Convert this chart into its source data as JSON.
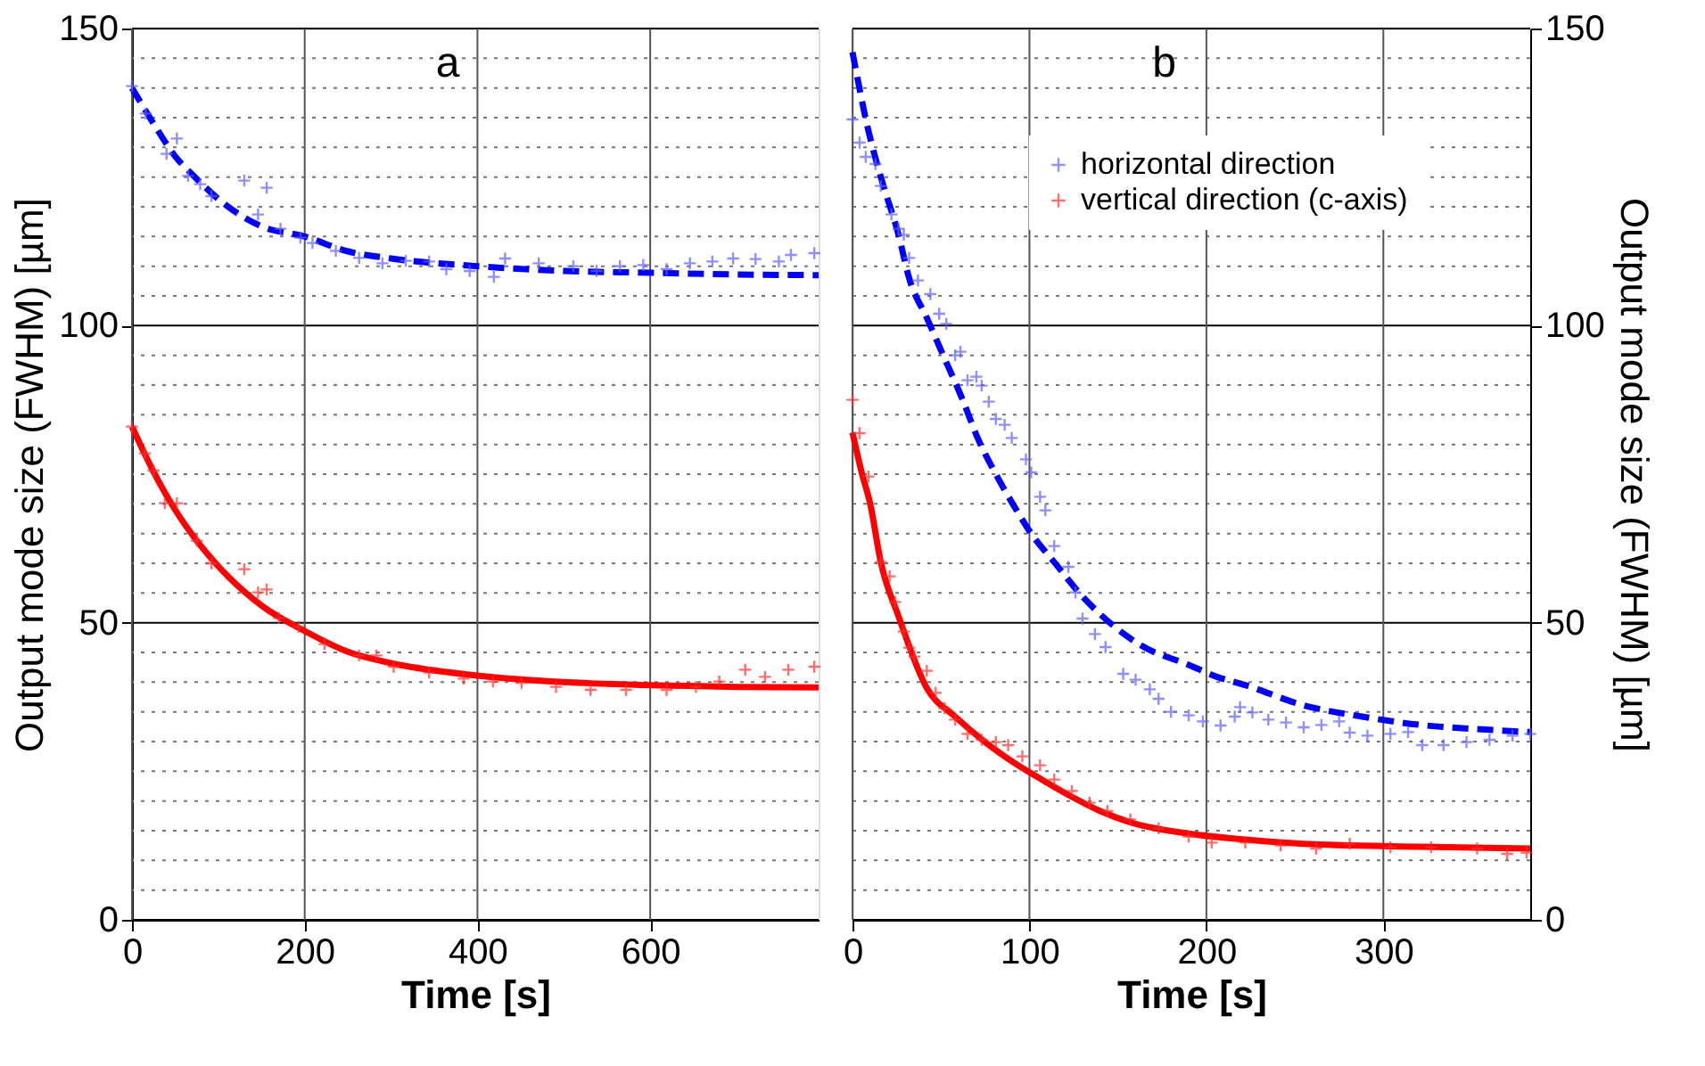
{
  "chart_data": [
    {
      "type": "scatter",
      "title": "a",
      "xlabel": "Time [s]",
      "ylabel": "Output mode size (FWHM) [µm]",
      "xlim": [
        0,
        795
      ],
      "xticks": [
        0,
        200,
        400,
        600
      ],
      "ylim": [
        0,
        150
      ],
      "yticks": [
        0,
        {
          "value": 5,
          "label": null
        },
        {
          "value": 10,
          "label": null
        },
        {
          "value": 15,
          "label": null
        },
        {
          "value": 20,
          "label": null
        },
        {
          "value": 25,
          "label": null
        },
        {
          "value": 30,
          "label": null
        },
        {
          "value": 35,
          "label": null
        },
        {
          "value": 40,
          "label": null
        },
        {
          "value": 45,
          "label": null
        },
        50,
        {
          "value": 55,
          "label": null
        },
        {
          "value": 60,
          "label": null
        },
        {
          "value": 65,
          "label": null
        },
        {
          "value": 70,
          "label": null
        },
        {
          "value": 75,
          "label": null
        },
        {
          "value": 80,
          "label": null
        },
        {
          "value": 85,
          "label": null
        },
        {
          "value": 90,
          "label": null
        },
        {
          "value": 95,
          "label": null
        },
        100,
        {
          "value": 105,
          "label": null
        },
        {
          "value": 110,
          "label": null
        },
        {
          "value": 115,
          "label": null
        },
        {
          "value": 120,
          "label": null
        },
        {
          "value": 125,
          "label": null
        },
        {
          "value": 130,
          "label": null
        },
        {
          "value": 135,
          "label": null
        },
        {
          "value": 140,
          "label": null
        },
        {
          "value": 145,
          "label": null
        },
        150
      ],
      "grid": true,
      "series": [
        {
          "type": "scatter",
          "marker": "cross",
          "color": "#6060ff",
          "x": [
            0,
            16,
            40,
            52,
            65,
            79,
            92,
            130,
            156,
            146,
            172,
            195,
            209,
            236,
            263,
            290,
            317,
            344,
            364,
            391,
            419,
            432,
            471,
            511,
            538,
            565,
            592,
            619,
            646,
            672,
            696,
            722,
            749,
            763,
            790
          ],
          "values": [
            140.3,
            135.7,
            128.9,
            131.5,
            125.2,
            123.8,
            121.8,
            124.4,
            123.2,
            118.7,
            116.3,
            114.8,
            113.9,
            112.6,
            111.4,
            110.5,
            110.9,
            110.8,
            109.5,
            109.2,
            108.2,
            111.3,
            110.5,
            110.0,
            109.2,
            110.0,
            110.2,
            109.5,
            110.5,
            110.8,
            111.3,
            111.2,
            110.8,
            111.9,
            112.2
          ]
        },
        {
          "type": "line",
          "line_style": "dashed",
          "color": "#0000ff",
          "x": [
            0,
            25,
            50,
            75,
            100,
            150,
            200,
            250,
            300,
            400,
            500,
            600,
            700,
            795
          ],
          "values": [
            140,
            134,
            128.5,
            124.7,
            121.3,
            116.7,
            115,
            112.5,
            111.3,
            110,
            109.2,
            108.9,
            108.6,
            108.5
          ]
        },
        {
          "type": "scatter",
          "marker": "cross",
          "color": "#ff3030",
          "x": [
            0,
            15,
            25,
            38,
            52,
            75,
            92,
            130,
            156,
            146,
            170,
            193,
            223,
            263,
            283,
            303,
            344,
            384,
            418,
            451,
            491,
            531,
            572,
            619,
            653,
            680,
            710,
            733,
            760,
            790
          ],
          "values": [
            83,
            78.5,
            75.6,
            70.1,
            70.1,
            63.8,
            60,
            59,
            55.6,
            55.1,
            50.8,
            49.3,
            46.4,
            44.5,
            44.5,
            42.6,
            41.6,
            40.6,
            40.1,
            39.9,
            39.2,
            38.7,
            38.7,
            38.7,
            39.2,
            40.1,
            42.1,
            40.9,
            42.1,
            42.6
          ]
        },
        {
          "type": "line",
          "line_style": "solid",
          "color": "#ff0000",
          "x": [
            0,
            25,
            50,
            75,
            100,
            150,
            200,
            250,
            300,
            400,
            500,
            600,
            700,
            795
          ],
          "values": [
            83,
            75.4,
            69,
            63.8,
            59.5,
            52.9,
            48.6,
            45.1,
            43.2,
            41.1,
            40,
            39.5,
            39.2,
            39.1
          ]
        }
      ]
    },
    {
      "type": "scatter",
      "title": "b",
      "xlabel": "Time [s]",
      "y2label": "Output mode size (FWHM) [µm]",
      "xlim": [
        0,
        383
      ],
      "xticks": [
        0,
        100,
        200,
        300
      ],
      "y2lim": [
        0,
        150
      ],
      "y2ticks": [
        0,
        {
          "value": 5,
          "label": null
        },
        {
          "value": 10,
          "label": null
        },
        {
          "value": 15,
          "label": null
        },
        {
          "value": 20,
          "label": null
        },
        {
          "value": 25,
          "label": null
        },
        {
          "value": 30,
          "label": null
        },
        {
          "value": 35,
          "label": null
        },
        {
          "value": 40,
          "label": null
        },
        {
          "value": 45,
          "label": null
        },
        50,
        {
          "value": 55,
          "label": null
        },
        {
          "value": 60,
          "label": null
        },
        {
          "value": 65,
          "label": null
        },
        {
          "value": 70,
          "label": null
        },
        {
          "value": 75,
          "label": null
        },
        {
          "value": 80,
          "label": null
        },
        {
          "value": 85,
          "label": null
        },
        {
          "value": 90,
          "label": null
        },
        {
          "value": 95,
          "label": null
        },
        100,
        {
          "value": 105,
          "label": null
        },
        {
          "value": 110,
          "label": null
        },
        {
          "value": 115,
          "label": null
        },
        {
          "value": 120,
          "label": null
        },
        {
          "value": 125,
          "label": null
        },
        {
          "value": 130,
          "label": null
        },
        {
          "value": 135,
          "label": null
        },
        {
          "value": 140,
          "label": null
        },
        {
          "value": 145,
          "label": null
        },
        150
      ],
      "grid": true,
      "legend": "top right",
      "series": [
        {
          "name": "horizontal direction",
          "type": "scatter",
          "marker": "cross",
          "axis": "y2",
          "color": "#6060ff",
          "x": [
            0,
            4,
            7.5,
            13,
            16,
            22,
            26,
            29,
            32,
            37,
            44,
            49,
            53,
            58,
            61,
            65,
            70,
            73,
            77,
            81,
            86,
            90,
            98,
            101,
            106,
            109,
            114,
            122,
            126,
            130,
            137,
            143,
            153,
            160,
            168,
            173,
            180,
            190,
            198,
            208,
            216,
            219,
            226,
            235,
            245,
            255,
            265,
            275,
            281,
            291,
            304,
            314,
            322,
            334,
            347,
            360,
            373,
            383
          ],
          "values": [
            134.7,
            130.8,
            128.4,
            127.2,
            123.5,
            118.7,
            116.3,
            115.3,
            111.4,
            107.6,
            105.3,
            102,
            100.3,
            95,
            95.6,
            90.8,
            91.4,
            89.9,
            87.2,
            84.3,
            83.3,
            81.1,
            77.5,
            75.3,
            71.2,
            68.9,
            62.9,
            59.4,
            55.1,
            50.7,
            48.1,
            45.9,
            41.4,
            40.4,
            38.8,
            37.2,
            35.0,
            34.4,
            33.4,
            32.7,
            34.2,
            35.8,
            34.9,
            33.7,
            33.2,
            32.4,
            32.8,
            33.4,
            31.5,
            31.0,
            31.3,
            31.6,
            29.4,
            29.4,
            29.9,
            30.3,
            31.0,
            31.3
          ]
        },
        {
          "name": "vertical direction (c-axis)",
          "type": "scatter",
          "marker": "cross",
          "axis": "y2",
          "color": "#ff3030",
          "x": [
            0,
            4,
            9,
            16,
            21,
            24,
            29,
            32,
            35,
            42,
            47,
            52,
            58,
            65,
            73,
            81,
            88,
            96,
            106,
            114,
            124,
            134,
            144,
            157,
            173,
            190,
            203,
            222,
            242,
            262,
            281,
            304,
            327,
            353,
            370,
            381
          ],
          "values": [
            87.5,
            81.9,
            74.6,
            60.2,
            57.8,
            53.5,
            48.5,
            45.8,
            44.3,
            41.9,
            38.2,
            35.6,
            33.7,
            31.3,
            30.3,
            29.9,
            29.4,
            27.5,
            26,
            23.6,
            21.7,
            19.7,
            18.3,
            16.9,
            15.4,
            14.0,
            13.0,
            13.0,
            12.5,
            12.0,
            12.8,
            12.2,
            12.2,
            12.0,
            11.1,
            11.3
          ]
        },
        {
          "type": "line",
          "line_style": "dashed",
          "axis": "y2",
          "color": "#0000ff",
          "x": [
            0,
            9,
            17,
            26,
            32,
            42,
            52,
            62,
            71,
            81,
            94,
            101,
            114,
            130,
            147,
            163,
            190,
            206,
            222,
            255,
            288,
            321,
            353,
            383
          ],
          "values": [
            146,
            132.8,
            124,
            115.3,
            108,
            101.3,
            94.5,
            87.7,
            80.9,
            75,
            68.3,
            65,
            60.2,
            54.4,
            49.6,
            46.2,
            42.9,
            40.9,
            39.5,
            36.1,
            34.2,
            32.8,
            32.1,
            31.6
          ]
        },
        {
          "type": "line",
          "line_style": "solid",
          "axis": "y2",
          "color": "#ff0000",
          "x": [
            0,
            5,
            10,
            16,
            26,
            42,
            58,
            75,
            91,
            107,
            124,
            140,
            157,
            190,
            222,
            255,
            321,
            383
          ],
          "values": [
            82,
            75.5,
            70,
            60.2,
            51.1,
            39,
            34.2,
            29.9,
            26.5,
            23.6,
            20.7,
            18.3,
            16.4,
            14.5,
            13.5,
            12.8,
            12.3,
            12.0
          ]
        }
      ]
    }
  ]
}
